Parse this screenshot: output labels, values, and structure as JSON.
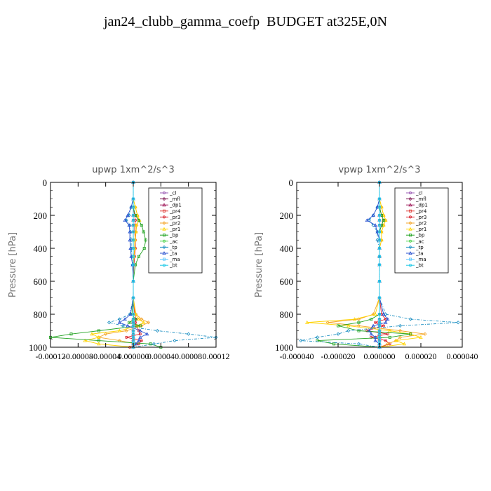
{
  "title": "jan24_clubb_gamma_coefp  BUDGET at325E,0N",
  "chart_data": [
    {
      "type": "line",
      "title": "upwp   1xm^2/s^3",
      "ylabel": "Pressure [hPa]",
      "ylim": [
        1000,
        0
      ],
      "xlim": [
        -0.00012,
        0.00012
      ],
      "yticks": [
        "0",
        "200",
        "400",
        "600",
        "800",
        "1000"
      ],
      "xticks": [
        "-0.00012",
        "-0.00008",
        "-0.00004",
        "0.000000",
        "0.00004",
        "0.00008",
        "0.00012"
      ],
      "y": [
        0,
        100,
        150,
        200,
        230,
        260,
        300,
        350,
        400,
        450,
        500,
        600,
        700,
        800,
        830,
        850,
        870,
        900,
        920,
        940,
        960,
        980,
        1000
      ],
      "series": [
        {
          "name": "_cl",
          "color": "#9a5bb5",
          "values": [
            0,
            0,
            0,
            0,
            0,
            0,
            0,
            0,
            0,
            0,
            0,
            0,
            0,
            0,
            0,
            0,
            0,
            0,
            0,
            0,
            0,
            0,
            0
          ]
        },
        {
          "name": "_mfl",
          "color": "#7b1550",
          "values": [
            0,
            0,
            0,
            0,
            0,
            0,
            0,
            0,
            0,
            0,
            0,
            0,
            0,
            0,
            0,
            0,
            0,
            0,
            0,
            0,
            0,
            0,
            0
          ]
        },
        {
          "name": "_dp1",
          "color": "#a01a5a",
          "values": [
            0,
            0,
            0,
            0,
            0,
            0,
            0,
            0,
            0,
            0,
            0,
            0,
            0,
            0,
            0,
            0,
            0,
            0,
            0,
            0,
            0,
            0,
            0
          ]
        },
        {
          "name": "_pr4",
          "color": "#e0413b",
          "values": [
            0,
            0,
            0,
            0,
            0,
            0,
            0,
            0,
            0,
            0,
            0,
            0,
            0,
            0,
            0,
            0,
            0,
            0,
            0,
            0,
            0,
            0,
            0
          ]
        },
        {
          "name": "_pr3",
          "color": "#d8202a",
          "values": [
            0,
            0,
            0,
            2e-06,
            3e-06,
            2e-06,
            2e-06,
            3e-06,
            3e-06,
            2e-06,
            1e-06,
            0,
            0,
            2e-06,
            4e-06,
            3e-06,
            5e-06,
            8e-06,
            1e-05,
            -1e-05,
            1.2e-05,
            8e-06,
            -5e-06
          ]
        },
        {
          "name": "_pr2",
          "color": "#f4a62a",
          "values": [
            0,
            0,
            3e-06,
            6e-06,
            8e-06,
            5e-06,
            4e-06,
            3e-06,
            2e-06,
            1e-06,
            0,
            0,
            0,
            4e-06,
            1.2e-05,
            2.2e-05,
            1.2e-05,
            -1e-05,
            -4e-05,
            -5e-05,
            -2e-05,
            4e-06,
            0
          ]
        },
        {
          "name": "_pr1",
          "color": "#ffd300",
          "values": [
            0,
            0,
            3e-06,
            6e-06,
            9e-06,
            4e-06,
            4e-06,
            2e-06,
            2e-06,
            1e-06,
            0,
            0,
            0,
            3e-06,
            8e-06,
            1.5e-05,
            6e-06,
            -2e-05,
            -6e-05,
            -5e-05,
            -7e-05,
            -5e-05,
            0
          ]
        },
        {
          "name": "_bp",
          "color": "#22a322",
          "values": [
            0,
            0,
            0,
            3e-06,
            8e-06,
            1.2e-05,
            1.5e-05,
            1.8e-05,
            1.6e-05,
            8e-06,
            3e-06,
            0,
            0,
            -2e-06,
            3e-06,
            -6e-06,
            1e-05,
            -5e-05,
            -9e-05,
            -0.00012,
            -5e-05,
            2.5e-05,
            4e-05
          ]
        },
        {
          "name": "_ac",
          "color": "#4fd34f",
          "values": [
            0,
            0,
            0,
            0,
            0,
            0,
            0,
            0,
            0,
            0,
            0,
            0,
            0,
            0,
            0,
            0,
            0,
            0,
            0,
            0,
            0,
            0,
            0
          ]
        },
        {
          "name": "_tp",
          "color": "#1c8fc2",
          "values": [
            0,
            0,
            -3e-06,
            -6e-06,
            -1e-05,
            -5e-06,
            -4e-06,
            -3e-06,
            -3e-06,
            -2e-06,
            -1e-06,
            0,
            0,
            -5e-06,
            -2e-05,
            -3.5e-05,
            -1.5e-05,
            3.5e-05,
            8e-05,
            0.00012,
            6e-05,
            3e-05,
            0
          ]
        },
        {
          "name": "_ta",
          "color": "#2a52d0",
          "values": [
            0,
            0,
            -3e-06,
            -8e-06,
            -1.2e-05,
            -6e-06,
            -5e-06,
            -5e-06,
            -4e-06,
            -3e-06,
            -1e-06,
            0,
            0,
            -4e-06,
            -1.2e-05,
            -2e-05,
            -8e-06,
            1e-05,
            2e-05,
            1e-05,
            8e-06,
            4e-06,
            0
          ]
        },
        {
          "name": "_ma",
          "color": "#5cc7ff",
          "values": [
            0,
            0,
            0,
            0,
            0,
            0,
            0,
            0,
            0,
            0,
            0,
            0,
            0,
            0,
            0,
            0,
            0,
            0,
            0,
            0,
            0,
            0,
            0
          ]
        },
        {
          "name": "_bt",
          "color": "#1ec9e6",
          "values": [
            0,
            0,
            0,
            0,
            0,
            0,
            0,
            0,
            0,
            0,
            0,
            0,
            0,
            0,
            0,
            0,
            0,
            0,
            0,
            0,
            0,
            0,
            0
          ]
        }
      ]
    },
    {
      "type": "line",
      "title": "vpwp   1xm^2/s^3",
      "ylabel": "Pressure [hPa]",
      "ylim": [
        1000,
        0
      ],
      "xlim": [
        -4e-05,
        4e-05
      ],
      "yticks": [
        "0",
        "200",
        "400",
        "600",
        "800",
        "1000"
      ],
      "xticks": [
        "-0.000040",
        "-0.000020",
        "0.000000",
        "0.000020",
        "0.000040"
      ],
      "y": [
        0,
        100,
        150,
        200,
        230,
        260,
        300,
        350,
        400,
        450,
        500,
        600,
        700,
        800,
        830,
        850,
        870,
        900,
        920,
        940,
        960,
        980,
        1000
      ],
      "series": [
        {
          "name": "_cl",
          "color": "#9a5bb5",
          "values": [
            0,
            0,
            0,
            0,
            0,
            0,
            0,
            0,
            0,
            0,
            0,
            0,
            0,
            0,
            0,
            0,
            0,
            0,
            0,
            0,
            0,
            0,
            0
          ]
        },
        {
          "name": "_mfl",
          "color": "#7b1550",
          "values": [
            0,
            0,
            0,
            0,
            0,
            0,
            0,
            0,
            0,
            0,
            0,
            0,
            0,
            0,
            0,
            0,
            0,
            0,
            0,
            0,
            0,
            0,
            0
          ]
        },
        {
          "name": "_dp1",
          "color": "#a01a5a",
          "values": [
            0,
            0,
            0,
            0,
            0,
            0,
            0,
            0,
            0,
            0,
            0,
            0,
            0,
            0,
            0,
            0,
            0,
            0,
            0,
            0,
            0,
            0,
            0
          ]
        },
        {
          "name": "_pr4",
          "color": "#e0413b",
          "values": [
            0,
            0,
            0,
            0,
            0,
            0,
            0,
            0,
            0,
            0,
            0,
            0,
            0,
            0,
            0,
            0,
            0,
            0,
            0,
            0,
            0,
            0,
            0
          ]
        },
        {
          "name": "_pr3",
          "color": "#d8202a",
          "values": [
            0,
            0,
            0,
            1e-06,
            2e-06,
            1e-06,
            0,
            0,
            0,
            0,
            0,
            0,
            0,
            1e-06,
            3e-06,
            -2e-06,
            2e-06,
            -6e-06,
            4e-06,
            -4e-06,
            3e-06,
            5e-06,
            0
          ]
        },
        {
          "name": "_pr2",
          "color": "#f4a62a",
          "values": [
            0,
            0,
            1e-06,
            2e-06,
            3e-06,
            2e-06,
            1e-06,
            1e-06,
            0,
            0,
            0,
            0,
            0,
            -3e-06,
            -1e-05,
            -2.5e-05,
            -1e-05,
            1e-05,
            2.2e-05,
            1e-05,
            8e-06,
            4e-06,
            0
          ]
        },
        {
          "name": "_pr1",
          "color": "#ffd300",
          "values": [
            0,
            0,
            1e-06,
            2e-06,
            3e-06,
            2e-06,
            1e-06,
            1e-06,
            0,
            0,
            0,
            0,
            0,
            -2e-06,
            -1.2e-05,
            -3.5e-05,
            -1.5e-05,
            5e-06,
            1.5e-05,
            2e-05,
            8e-06,
            1.2e-05,
            0
          ]
        },
        {
          "name": "_bp",
          "color": "#22a322",
          "values": [
            0,
            0,
            0,
            1e-06,
            2e-06,
            1e-06,
            0,
            0,
            0,
            0,
            0,
            0,
            0,
            0,
            -4e-06,
            -1e-05,
            -2e-05,
            -1e-05,
            1.5e-05,
            5e-06,
            -3e-05,
            -2.2e-05,
            0
          ]
        },
        {
          "name": "_ac",
          "color": "#4fd34f",
          "values": [
            0,
            0,
            0,
            0,
            0,
            0,
            0,
            0,
            0,
            0,
            0,
            0,
            0,
            0,
            0,
            0,
            0,
            0,
            0,
            0,
            0,
            0,
            0
          ]
        },
        {
          "name": "_tp",
          "color": "#1c8fc2",
          "values": [
            0,
            0,
            -1e-06,
            -3e-06,
            -5e-06,
            -3e-06,
            -1e-06,
            -1e-06,
            0,
            0,
            0,
            0,
            0,
            3e-06,
            1.5e-05,
            3.8e-05,
            1e-05,
            -1.5e-05,
            -2e-05,
            -3e-05,
            -3.8e-05,
            -1e-05,
            0
          ]
        },
        {
          "name": "_ta",
          "color": "#2a52d0",
          "values": [
            0,
            0,
            -1e-06,
            -3e-06,
            -6e-06,
            -2e-06,
            -1e-06,
            0,
            0,
            0,
            0,
            0,
            0,
            2e-06,
            4e-06,
            3e-06,
            -3e-06,
            -5e-06,
            -4e-06,
            -2e-06,
            -2e-06,
            0,
            0
          ]
        },
        {
          "name": "_ma",
          "color": "#5cc7ff",
          "values": [
            0,
            0,
            0,
            0,
            0,
            0,
            0,
            0,
            0,
            0,
            0,
            0,
            0,
            0,
            0,
            0,
            0,
            0,
            0,
            0,
            0,
            0,
            0
          ]
        },
        {
          "name": "_bt",
          "color": "#1ec9e6",
          "values": [
            0,
            0,
            0,
            0,
            0,
            0,
            0,
            0,
            0,
            0,
            0,
            0,
            0,
            0,
            0,
            0,
            0,
            0,
            0,
            0,
            0,
            0,
            0
          ]
        }
      ]
    }
  ]
}
